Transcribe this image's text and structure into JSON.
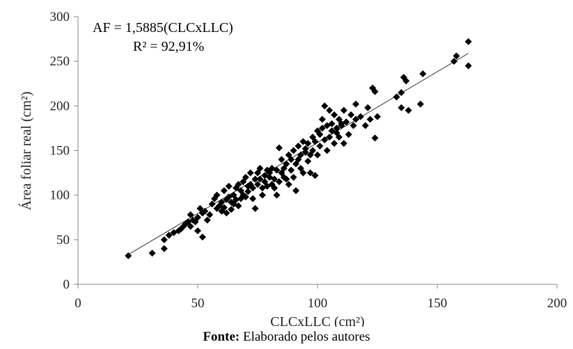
{
  "chart_data": {
    "type": "scatter",
    "title": "",
    "xlabel": "CLCxLLC (cm²)",
    "ylabel": "Área foliar real (cm²)",
    "xlim": [
      0,
      200
    ],
    "ylim": [
      0,
      300
    ],
    "x_ticks": [
      "0",
      "50",
      "100",
      "150",
      "200"
    ],
    "y_ticks": [
      "0",
      "50",
      "100",
      "150",
      "200",
      "250",
      "300"
    ],
    "grid": false,
    "legend": "none",
    "equation": "AF = 1,5885(CLCxLLC)",
    "r_squared": "R² = 92,91%",
    "marker_color": "#000000",
    "trendline": {
      "slope": 1.5885,
      "intercept": 0,
      "x_range": [
        20,
        163
      ]
    },
    "points": [
      [
        21,
        32
      ],
      [
        31,
        35
      ],
      [
        36,
        40
      ],
      [
        36,
        50
      ],
      [
        38,
        55
      ],
      [
        40,
        58
      ],
      [
        42,
        60
      ],
      [
        43,
        62
      ],
      [
        44,
        65
      ],
      [
        45,
        68
      ],
      [
        46,
        70
      ],
      [
        47,
        78
      ],
      [
        47,
        65
      ],
      [
        48,
        72
      ],
      [
        49,
        70
      ],
      [
        50,
        60
      ],
      [
        50,
        75
      ],
      [
        51,
        85
      ],
      [
        52,
        80
      ],
      [
        52,
        53
      ],
      [
        53,
        82
      ],
      [
        54,
        72
      ],
      [
        55,
        78
      ],
      [
        56,
        90
      ],
      [
        57,
        96
      ],
      [
        58,
        85
      ],
      [
        58,
        100
      ],
      [
        59,
        88
      ],
      [
        60,
        92
      ],
      [
        60,
        82
      ],
      [
        61,
        105
      ],
      [
        61,
        86
      ],
      [
        62,
        95
      ],
      [
        62,
        80
      ],
      [
        63,
        110
      ],
      [
        63,
        98
      ],
      [
        64,
        92
      ],
      [
        64,
        84
      ],
      [
        65,
        100
      ],
      [
        65,
        90
      ],
      [
        66,
        108
      ],
      [
        66,
        95
      ],
      [
        67,
        112
      ],
      [
        67,
        88
      ],
      [
        68,
        105
      ],
      [
        68,
        96
      ],
      [
        69,
        115
      ],
      [
        69,
        100
      ],
      [
        70,
        120
      ],
      [
        70,
        98
      ],
      [
        71,
        110
      ],
      [
        71,
        104
      ],
      [
        72,
        125
      ],
      [
        72,
        112
      ],
      [
        73,
        108
      ],
      [
        73,
        96
      ],
      [
        74,
        118
      ],
      [
        74,
        85
      ],
      [
        75,
        125
      ],
      [
        75,
        112
      ],
      [
        76,
        130
      ],
      [
        76,
        118
      ],
      [
        77,
        108
      ],
      [
        77,
        100
      ],
      [
        78,
        122
      ],
      [
        78,
        115
      ],
      [
        79,
        128
      ],
      [
        79,
        110
      ],
      [
        80,
        120
      ],
      [
        80,
        125
      ],
      [
        81,
        112
      ],
      [
        81,
        130
      ],
      [
        82,
        118
      ],
      [
        82,
        108
      ],
      [
        83,
        128
      ],
      [
        83,
        100
      ],
      [
        84,
        153
      ],
      [
        84,
        115
      ],
      [
        85,
        125
      ],
      [
        85,
        140
      ],
      [
        86,
        130
      ],
      [
        86,
        120
      ],
      [
        87,
        118
      ],
      [
        87,
        135
      ],
      [
        88,
        145
      ],
      [
        88,
        112
      ],
      [
        89,
        128
      ],
      [
        89,
        140
      ],
      [
        90,
        120
      ],
      [
        90,
        150
      ],
      [
        91,
        135
      ],
      [
        91,
        105
      ],
      [
        92,
        155
      ],
      [
        92,
        140
      ],
      [
        93,
        145
      ],
      [
        93,
        130
      ],
      [
        94,
        160
      ],
      [
        94,
        125
      ],
      [
        95,
        148
      ],
      [
        95,
        152
      ],
      [
        96,
        138
      ],
      [
        96,
        158
      ],
      [
        97,
        145
      ],
      [
        97,
        125
      ],
      [
        98,
        165
      ],
      [
        98,
        150
      ],
      [
        99,
        160
      ],
      [
        99,
        122
      ],
      [
        100,
        172
      ],
      [
        100,
        145
      ],
      [
        101,
        168
      ],
      [
        101,
        155
      ],
      [
        102,
        185
      ],
      [
        102,
        175
      ],
      [
        103,
        200
      ],
      [
        103,
        162
      ],
      [
        104,
        178
      ],
      [
        104,
        150
      ],
      [
        105,
        195
      ],
      [
        105,
        165
      ],
      [
        106,
        180
      ],
      [
        106,
        172
      ],
      [
        107,
        190
      ],
      [
        107,
        158
      ],
      [
        108,
        175
      ],
      [
        108,
        170
      ],
      [
        109,
        185
      ],
      [
        109,
        165
      ],
      [
        110,
        178
      ],
      [
        110,
        180
      ],
      [
        111,
        195
      ],
      [
        111,
        158
      ],
      [
        112,
        182
      ],
      [
        113,
        168
      ],
      [
        114,
        190
      ],
      [
        115,
        178
      ],
      [
        116,
        185
      ],
      [
        116,
        202
      ],
      [
        118,
        188
      ],
      [
        120,
        178
      ],
      [
        121,
        198
      ],
      [
        122,
        185
      ],
      [
        123,
        220
      ],
      [
        124,
        216
      ],
      [
        124,
        164
      ],
      [
        125,
        188
      ],
      [
        133,
        210
      ],
      [
        135,
        215
      ],
      [
        135,
        198
      ],
      [
        136,
        232
      ],
      [
        137,
        228
      ],
      [
        138,
        195
      ],
      [
        143,
        202
      ],
      [
        144,
        236
      ],
      [
        157,
        250
      ],
      [
        158,
        256
      ],
      [
        163,
        272
      ],
      [
        163,
        245
      ]
    ]
  },
  "caption": {
    "label": "Fonte:",
    "text": " Elaborado pelos autores"
  }
}
